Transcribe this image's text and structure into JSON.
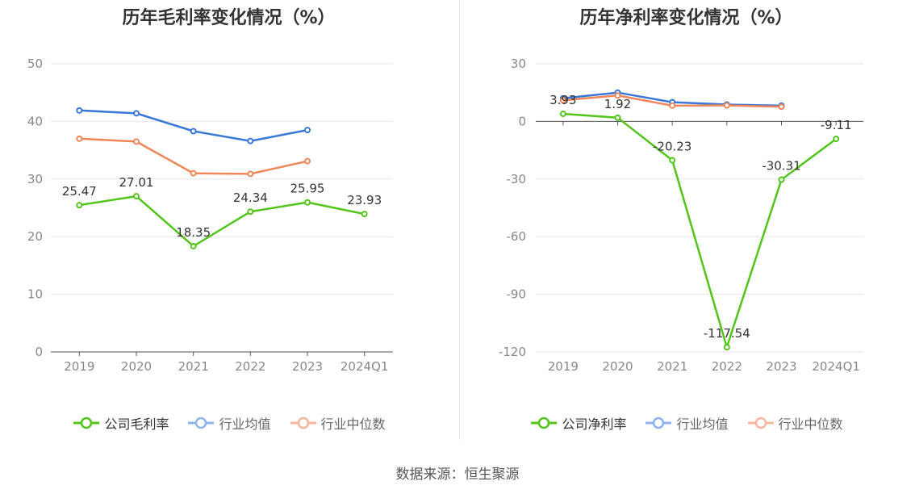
{
  "source_label": "数据来源：恒生聚源",
  "chart_data": [
    {
      "type": "line",
      "title": "历年毛利率变化情况（%）",
      "categories": [
        "2019",
        "2020",
        "2021",
        "2022",
        "2023",
        "2024Q1"
      ],
      "ylim": [
        0,
        50
      ],
      "yticks": [
        0,
        10,
        20,
        30,
        40,
        50
      ],
      "ytick_labels": [
        "0",
        "10",
        "20",
        "30",
        "40",
        "50"
      ],
      "grid": true,
      "legend_position": "bottom",
      "series": [
        {
          "name": "公司毛利率",
          "color": "#52c41a",
          "values": [
            25.47,
            27.01,
            18.35,
            24.34,
            25.95,
            23.93
          ],
          "labels": [
            "25.47",
            "27.01",
            "18.35",
            "24.34",
            "25.95",
            "23.93"
          ]
        },
        {
          "name": "行业均值",
          "color": "#3a78d8",
          "values": [
            41.9,
            41.4,
            38.3,
            36.6,
            38.5,
            null
          ]
        },
        {
          "name": "行业中位数",
          "color": "#f0875a",
          "values": [
            37.0,
            36.5,
            31.0,
            30.9,
            33.1,
            null
          ]
        }
      ]
    },
    {
      "type": "line",
      "title": "历年净利率变化情况（%）",
      "categories": [
        "2019",
        "2020",
        "2021",
        "2022",
        "2023",
        "2024Q1"
      ],
      "ylim": [
        -120,
        30
      ],
      "yticks": [
        30,
        0,
        -30,
        -60,
        -90,
        -120
      ],
      "ytick_labels": [
        "30",
        "0",
        "-30",
        "-60",
        "-90",
        "-120"
      ],
      "grid": true,
      "legend_position": "bottom",
      "series": [
        {
          "name": "公司净利率",
          "color": "#52c41a",
          "values": [
            3.93,
            1.92,
            -20.23,
            -117.54,
            -30.31,
            -9.11
          ],
          "labels": [
            "3.93",
            "1.92",
            "-20.23",
            "-117.54",
            "-30.31",
            "-9.11"
          ]
        },
        {
          "name": "行业均值",
          "color": "#3a78d8",
          "values": [
            12.0,
            15.0,
            10.0,
            8.8,
            8.2,
            null
          ]
        },
        {
          "name": "行业中位数",
          "color": "#f0875a",
          "values": [
            11.0,
            13.5,
            8.2,
            8.3,
            7.6,
            null
          ]
        }
      ]
    }
  ]
}
